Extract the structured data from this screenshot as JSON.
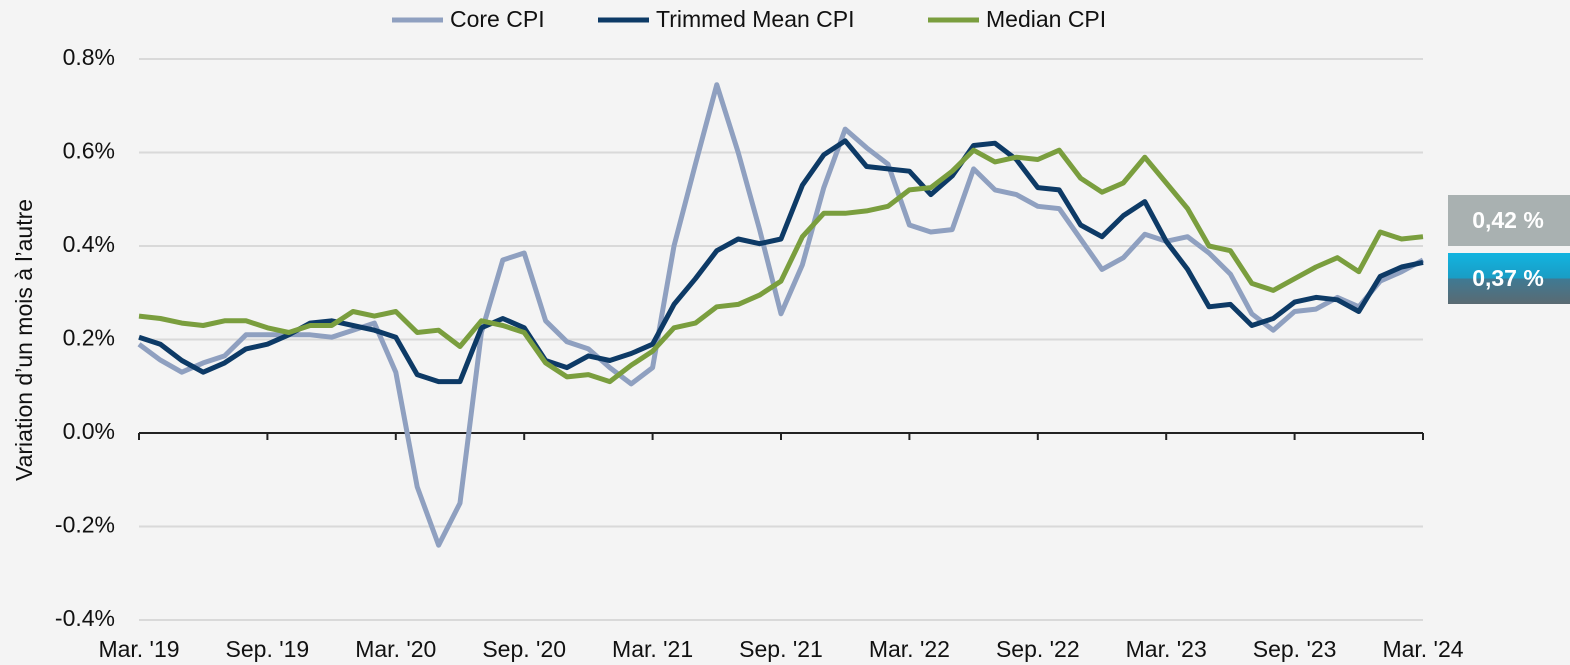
{
  "chart_data": {
    "type": "line",
    "y_label": "Variation d’un mois à l’autre",
    "categories": [
      "Mar. '19",
      null,
      null,
      null,
      null,
      null,
      "Sep. '19",
      null,
      null,
      null,
      null,
      null,
      "Mar. '20",
      null,
      null,
      null,
      null,
      null,
      "Sep. '20",
      null,
      null,
      null,
      null,
      null,
      "Mar. '21",
      null,
      null,
      null,
      null,
      null,
      "Sep. '21",
      null,
      null,
      null,
      null,
      null,
      "Mar. '22",
      null,
      null,
      null,
      null,
      null,
      "Sep. '22",
      null,
      null,
      null,
      null,
      null,
      "Mar. '23",
      null,
      null,
      null,
      null,
      null,
      "Sep. '23",
      null,
      null,
      null,
      null,
      null,
      "Mar. '24"
    ],
    "series": [
      {
        "name": "Core CPI",
        "color": "#8fa0c0",
        "values": [
          0.19,
          0.156,
          0.13,
          0.15,
          0.165,
          0.21,
          0.21,
          0.21,
          0.21,
          0.205,
          0.22,
          0.235,
          0.13,
          -0.115,
          -0.24,
          -0.15,
          0.215,
          0.37,
          0.385,
          0.24,
          0.195,
          0.18,
          0.14,
          0.105,
          0.14,
          0.4,
          0.575,
          0.745,
          0.6,
          0.435,
          0.255,
          0.36,
          0.525,
          0.65,
          0.61,
          0.575,
          0.445,
          0.43,
          0.435,
          0.565,
          0.52,
          0.51,
          0.485,
          0.48,
          0.415,
          0.35,
          0.375,
          0.425,
          0.41,
          0.42,
          0.385,
          0.34,
          0.255,
          0.22,
          0.26,
          0.265,
          0.29,
          0.27,
          0.325,
          0.345,
          0.37
        ]
      },
      {
        "name": "Trimmed Mean CPI",
        "color": "#0d3a66",
        "end_label": "0,37 %",
        "values": [
          0.205,
          0.19,
          0.155,
          0.13,
          0.15,
          0.18,
          0.19,
          0.21,
          0.235,
          0.24,
          0.23,
          0.22,
          0.205,
          0.125,
          0.11,
          0.11,
          0.225,
          0.245,
          0.225,
          0.155,
          0.14,
          0.165,
          0.155,
          0.17,
          0.19,
          0.275,
          0.33,
          0.39,
          0.415,
          0.405,
          0.415,
          0.53,
          0.595,
          0.625,
          0.57,
          0.565,
          0.56,
          0.51,
          0.55,
          0.615,
          0.62,
          0.585,
          0.525,
          0.52,
          0.445,
          0.42,
          0.465,
          0.495,
          0.41,
          0.35,
          0.27,
          0.275,
          0.23,
          0.245,
          0.28,
          0.29,
          0.285,
          0.26,
          0.335,
          0.355,
          0.365
        ]
      },
      {
        "name": "Median CPI",
        "color": "#7a9e3e",
        "end_label": "0,42 %",
        "values": [
          0.25,
          0.245,
          0.235,
          0.23,
          0.24,
          0.24,
          0.225,
          0.215,
          0.23,
          0.23,
          0.26,
          0.25,
          0.26,
          0.215,
          0.22,
          0.185,
          0.24,
          0.23,
          0.215,
          0.15,
          0.12,
          0.125,
          0.11,
          0.145,
          0.175,
          0.225,
          0.235,
          0.27,
          0.275,
          0.295,
          0.325,
          0.42,
          0.47,
          0.47,
          0.475,
          0.485,
          0.52,
          0.525,
          0.56,
          0.605,
          0.58,
          0.59,
          0.585,
          0.605,
          0.545,
          0.515,
          0.535,
          0.59,
          0.535,
          0.48,
          0.4,
          0.39,
          0.32,
          0.305,
          0.33,
          0.355,
          0.375,
          0.345,
          0.43,
          0.415,
          0.42
        ]
      }
    ],
    "ylim": [
      -0.4,
      0.8
    ],
    "yticks": [
      {
        "value": -0.4,
        "label": "-0.4%"
      },
      {
        "value": -0.2,
        "label": "-0.2%"
      },
      {
        "value": 0,
        "label": "0.0%"
      },
      {
        "value": 0.2,
        "label": "0.2%"
      },
      {
        "value": 0.4,
        "label": "0.4%"
      },
      {
        "value": 0.6,
        "label": "0.6%"
      },
      {
        "value": 0.8,
        "label": "0.8%"
      }
    ],
    "grid": true,
    "legend": "top"
  }
}
